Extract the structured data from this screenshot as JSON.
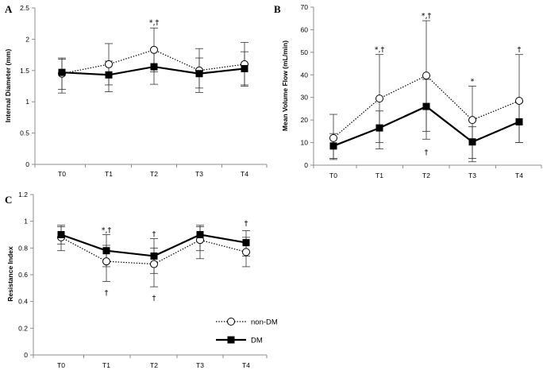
{
  "chart_data": [
    {
      "panel": "A",
      "type": "line",
      "ylabel": "Internal Diameter (mm)",
      "categories": [
        "T0",
        "T1",
        "T2",
        "T3",
        "T4"
      ],
      "ylim": [
        0,
        2.5
      ],
      "yticks": [
        "0",
        "0.5",
        "1",
        "1.5",
        "2",
        "2.5"
      ],
      "series": [
        {
          "name": "non-DM",
          "values": [
            1.45,
            1.6,
            1.83,
            1.5,
            1.6
          ],
          "err_hi": [
            1.7,
            1.93,
            2.18,
            1.85,
            1.95
          ],
          "err_lo": [
            1.2,
            1.27,
            1.48,
            1.15,
            1.25
          ]
        },
        {
          "name": "DM",
          "values": [
            1.47,
            1.43,
            1.56,
            1.45,
            1.53
          ],
          "err_hi": [
            1.68,
            1.65,
            1.82,
            1.7,
            1.8
          ],
          "err_lo": [
            1.14,
            1.16,
            1.28,
            1.22,
            1.27
          ]
        }
      ],
      "annotations": [
        {
          "category": "T2",
          "value": 2.28,
          "text": "*,†"
        }
      ]
    },
    {
      "panel": "B",
      "type": "line",
      "ylabel": "Mean Volume Flow (mL/min)",
      "categories": [
        "T0",
        "T1",
        "T2",
        "T3",
        "T4"
      ],
      "ylim": [
        0,
        70
      ],
      "yticks": [
        "0",
        "10",
        "20",
        "30",
        "40",
        "50",
        "60",
        "70"
      ],
      "series": [
        {
          "name": "non-DM",
          "values": [
            12,
            29.5,
            39.7,
            20,
            28.5
          ],
          "err_hi": [
            22.5,
            49,
            64,
            35,
            49
          ],
          "err_lo": [
            3,
            10,
            15,
            3,
            10
          ]
        },
        {
          "name": "DM",
          "values": [
            8.5,
            16.5,
            26,
            10.3,
            19.2
          ],
          "err_hi": [
            14,
            24,
            38,
            17,
            28
          ],
          "err_lo": [
            2.5,
            7.2,
            11.5,
            1.5,
            10
          ]
        }
      ],
      "annotations": [
        {
          "category": "T1",
          "value": 51.5,
          "text": "*,†"
        },
        {
          "category": "T2",
          "value": 66.5,
          "text": "*,†"
        },
        {
          "category": "T2",
          "value": 6,
          "text": "†"
        },
        {
          "category": "T3",
          "value": 37.5,
          "text": "*"
        },
        {
          "category": "T4",
          "value": 51.5,
          "text": "†"
        }
      ]
    },
    {
      "panel": "C",
      "type": "line",
      "ylabel": "Resistance Index",
      "categories": [
        "T0",
        "T1",
        "T2",
        "T3",
        "T4"
      ],
      "ylim": [
        0,
        1.2
      ],
      "yticks": [
        "0",
        "0.2",
        "0.4",
        "0.6",
        "0.8",
        "1",
        "1.2"
      ],
      "series": [
        {
          "name": "non-DM",
          "values": [
            0.88,
            0.7,
            0.68,
            0.86,
            0.77
          ],
          "err_hi": [
            0.96,
            0.82,
            0.8,
            0.96,
            0.88
          ],
          "err_lo": [
            0.78,
            0.55,
            0.51,
            0.72,
            0.66
          ]
        },
        {
          "name": "DM",
          "values": [
            0.9,
            0.78,
            0.74,
            0.9,
            0.84
          ],
          "err_hi": [
            0.97,
            0.9,
            0.87,
            0.97,
            0.93
          ],
          "err_lo": [
            0.83,
            0.66,
            0.61,
            0.78,
            0.74
          ]
        }
      ],
      "annotations": [
        {
          "category": "T1",
          "value": 0.94,
          "text": "*,†"
        },
        {
          "category": "T1",
          "value": 0.47,
          "text": "†"
        },
        {
          "category": "T2",
          "value": 0.91,
          "text": "†"
        },
        {
          "category": "T2",
          "value": 0.43,
          "text": "†"
        },
        {
          "category": "T4",
          "value": 0.99,
          "text": "†"
        }
      ],
      "legend": {
        "placement": "bottom-right",
        "entries": [
          "non-DM",
          "DM"
        ]
      }
    }
  ],
  "styles": {
    "non_dm_color": "#000000",
    "dm_color": "#000000",
    "axis_color": "#8c8c8c"
  }
}
